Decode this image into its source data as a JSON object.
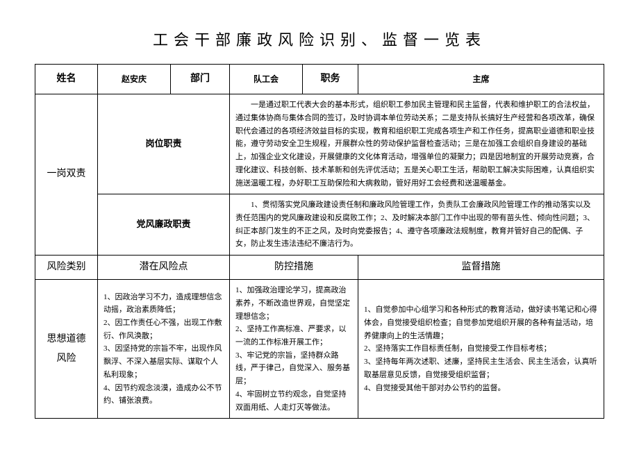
{
  "title": "工会干部廉政风险识别、监督一览表",
  "head": {
    "name_label": "姓名",
    "name_value": "赵安庆",
    "dept_label": "部门",
    "dept_value": "队工会",
    "position_label": "职务",
    "position_value": "主席"
  },
  "dual_resp": {
    "group_label": "一岗双责",
    "row1_label": "岗位职责",
    "row1_text": "一是通过职工代表大会的基本形式，组织职工参加民主管理和民主监督，代表和维护职工的合法权益，通过集体协商与集体合同的签订，及时协调本单位劳动关系；二是支持队长搞好生产经营和各项改革，确保职代会通过的各项经济效益目标的实现，教育和组织职工完成各项生产和工作任务，提高职业道德和职业技能，遵守劳动安全卫生规程，开展群众性的劳动保护监督检查活动；三是在加强工会组织自身建设的基础上，加强企业文化建设，开展健康的文化体育活动，增强单位的凝聚力；四是因地制宜的开展劳动竞赛，合理化建议、科技创新、技术革新和创先评优活动；五是关心职工生活，帮助职工解决实际困难，认真组织实施送温暖工程，办好职工互助保险和大病救助，管好用好工会经费和送温暖基金。",
    "row2_label": "党风廉政职责",
    "row2_text": "1、贯彻落实党风廉政建设责任制和廉政风险管理工作，负责队工会廉政风险管理工作的推动落实以及责任范围内的党风廉政建设和反腐败工作；2、及时解决本部门工作中出现的带有苗头性、倾向性问题；3、纠正本部门发生的不正之风，及时向党委报告；4、遵守各项廉政法规制度，教育并管好自己的配偶、子女，防止发生违法违纪不廉洁行为。"
  },
  "risk_header": {
    "category": "风险类别",
    "potential": "潜在风险点",
    "prevention": "防控措施",
    "supervision": "监督措施"
  },
  "moral_risk": {
    "label": "思想道德风险",
    "potential": "1、因政治学习不力，造成理想信念动摇，政治素质降低；\n2、因工作责任心不强，出现工作敷衍、作风涣散；\n3、因坚持党的宗旨不牢，出现作风飘浮、不深入基层实际、谋取个人私利现象；\n4、因节约观念淡漠，造成办公不节约、铺张浪费。",
    "prevention": "1、加强政治理论学习，提高政治素养，不断改造世界观，自觉坚定理想信念；\n2、坚持工作高标准、严要求，以一流的工作标准开展工作；\n3、牢记党的宗旨，坚持群众路线，严于律己，自觉深入、服务基层；\n4、牢固树立节约观念，自觉坚持双面用纸、人走灯灭等做法。",
    "supervision": "1、自觉参加中心组学习和各种形式的教育活动，做好读书笔记和心得体会，自觉接受组织检查；自觉参加党组织开展的各种有益活动，培养健康向上的生活情趣；\n2、坚持落实工作目标责任制，自觉接受工作目标考核；\n3、坚持每年两次述职、述廉，坚持民主生活会、民主生活会，认真听取基层意见反馈，自觉接受组织监督；\n4、自觉接受其他干部对办公节约的监督。"
  },
  "style": {
    "text_color": "#000000",
    "border_color": "#000000",
    "background_color": "#ffffff",
    "title_fontsize": 22,
    "header_fontsize": 14,
    "body_fontsize": 12,
    "small_fontsize": 11,
    "title_letter_spacing": 8
  }
}
